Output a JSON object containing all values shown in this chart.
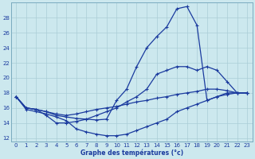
{
  "xlabel": "Graphe des températures (°c)",
  "bg_color": "#cce8ee",
  "line_color": "#1a3a9e",
  "grid_color": "#aacdd6",
  "xlim": [
    -0.5,
    23.5
  ],
  "ylim": [
    11.5,
    30.0
  ],
  "xticks": [
    0,
    1,
    2,
    3,
    4,
    5,
    6,
    7,
    8,
    9,
    10,
    11,
    12,
    13,
    14,
    15,
    16,
    17,
    18,
    19,
    20,
    21,
    22,
    23
  ],
  "yticks": [
    12,
    14,
    16,
    18,
    20,
    22,
    24,
    26,
    28
  ],
  "line1_x": [
    0,
    1,
    2,
    3,
    4,
    5,
    6,
    7,
    8,
    9,
    10,
    11,
    12,
    13,
    14,
    15,
    16,
    17,
    18,
    19,
    20,
    21,
    22,
    23
  ],
  "line1_y": [
    17.5,
    16.0,
    15.8,
    15.5,
    15.0,
    14.8,
    14.6,
    14.5,
    14.4,
    14.5,
    17.0,
    18.5,
    21.5,
    24.0,
    25.5,
    26.8,
    29.2,
    29.5,
    27.0,
    17.0,
    17.5,
    18.0,
    18.0,
    18.0
  ],
  "line2_x": [
    0,
    1,
    2,
    3,
    4,
    5,
    6,
    7,
    8,
    9,
    10,
    11,
    12,
    13,
    14,
    15,
    16,
    17,
    18,
    19,
    20,
    21,
    22,
    23
  ],
  "line2_y": [
    17.5,
    15.8,
    15.5,
    15.2,
    14.8,
    14.3,
    13.2,
    12.8,
    12.5,
    12.3,
    12.3,
    12.5,
    13.0,
    13.5,
    14.0,
    14.5,
    15.5,
    16.0,
    16.5,
    17.0,
    17.5,
    17.8,
    18.0,
    18.0
  ],
  "line3_x": [
    0,
    1,
    2,
    3,
    4,
    5,
    6,
    7,
    8,
    9,
    10,
    11,
    12,
    13,
    14,
    15,
    16,
    17,
    18,
    19,
    20,
    21,
    22,
    23
  ],
  "line3_y": [
    17.5,
    16.0,
    15.8,
    15.5,
    15.2,
    15.0,
    15.2,
    15.5,
    15.8,
    16.0,
    16.2,
    16.5,
    16.8,
    17.0,
    17.3,
    17.5,
    17.8,
    18.0,
    18.2,
    18.5,
    18.5,
    18.3,
    18.0,
    18.0
  ],
  "line4_x": [
    0,
    1,
    2,
    3,
    4,
    5,
    6,
    7,
    8,
    9,
    10,
    11,
    12,
    13,
    14,
    15,
    16,
    17,
    18,
    19,
    20,
    21,
    22,
    23
  ],
  "line4_y": [
    17.5,
    16.0,
    15.8,
    15.0,
    14.0,
    14.0,
    14.2,
    14.5,
    15.0,
    15.5,
    16.0,
    16.8,
    17.5,
    18.5,
    20.5,
    21.0,
    21.5,
    21.5,
    21.0,
    21.5,
    21.0,
    19.5,
    18.0,
    18.0
  ]
}
